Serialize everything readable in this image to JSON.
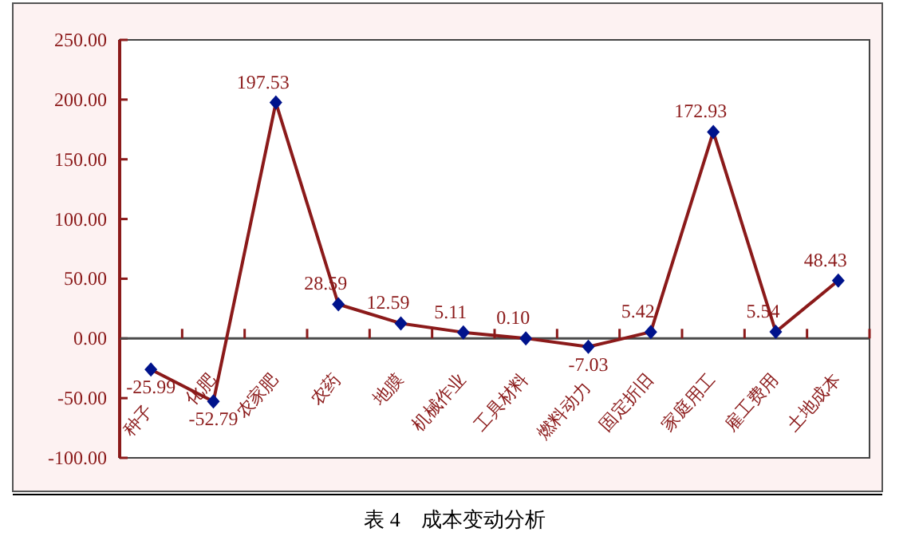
{
  "chart_data": {
    "type": "line",
    "categories": [
      "种子",
      "化肥",
      "农家肥",
      "农药",
      "地膜",
      "机械作业",
      "工具材料",
      "燃料动力",
      "固定折旧",
      "家庭用工",
      "雇工费用",
      "土地成本"
    ],
    "values": [
      -25.99,
      -52.79,
      197.53,
      28.59,
      12.59,
      5.11,
      0.1,
      -7.03,
      5.42,
      172.93,
      5.54,
      48.43
    ],
    "value_labels": [
      "-25.99",
      "-52.79",
      "197.53",
      "28.59",
      "12.59",
      "5.11",
      "0.10",
      "-7.03",
      "5.42",
      "172.93",
      "5.54",
      "48.43"
    ],
    "color": "#8b1a1a",
    "marker": "diamond",
    "line_style": "solid",
    "ylim": [
      -100,
      250
    ],
    "yticks": [
      {
        "value": -100,
        "label": "-100.00"
      },
      {
        "value": -50,
        "label": "-50.00"
      },
      {
        "value": 0,
        "label": "0.00"
      },
      {
        "value": 50,
        "label": "50.00"
      },
      {
        "value": 100,
        "label": "100.00"
      },
      {
        "value": 150,
        "label": "150.00"
      },
      {
        "value": 200,
        "label": "200.00"
      },
      {
        "value": 250,
        "label": "250.00"
      }
    ],
    "annotations": [
      "表 4　成本变动分析"
    ]
  }
}
